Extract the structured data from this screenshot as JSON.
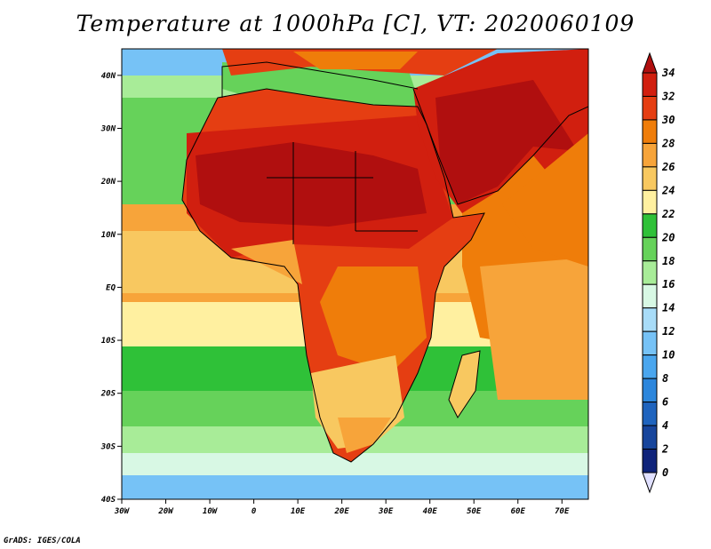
{
  "title": "Temperature at 1000hPa [C], VT: 2020060109",
  "footer": "GrADS: IGES/COLA",
  "map": {
    "lon_range": [
      -30,
      76
    ],
    "lat_range": [
      -40,
      45
    ],
    "lon_ticks": [
      "30W",
      "20W",
      "10W",
      "0",
      "10E",
      "20E",
      "30E",
      "40E",
      "50E",
      "60E",
      "70E"
    ],
    "lat_ticks": [
      "40N",
      "30N",
      "20N",
      "10N",
      "EQ",
      "10S",
      "20S",
      "30S",
      "40S"
    ]
  },
  "colorbar": {
    "labels": [
      "34",
      "32",
      "30",
      "28",
      "26",
      "24",
      "22",
      "20",
      "18",
      "16",
      "14",
      "12",
      "10",
      "8",
      "6",
      "4",
      "2",
      "0"
    ],
    "colors": {
      "c34": "#b00f0f",
      "c32": "#d11f0f",
      "c30": "#e53e12",
      "c28": "#ef7d0a",
      "c26": "#f7a43a",
      "c24": "#f8c860",
      "c22": "#fff0a0",
      "c20": "#2fc138",
      "c18": "#66d25a",
      "c16": "#a8ec98",
      "c14": "#d8f8e4",
      "c12": "#a8dcf8",
      "c10": "#76c2f6",
      "c8": "#4aa6ee",
      "c6": "#2c86dc",
      "c4": "#1f64be",
      "c2": "#17459c",
      "c0": "#0f237a",
      "under": "#e0e0ff"
    }
  }
}
